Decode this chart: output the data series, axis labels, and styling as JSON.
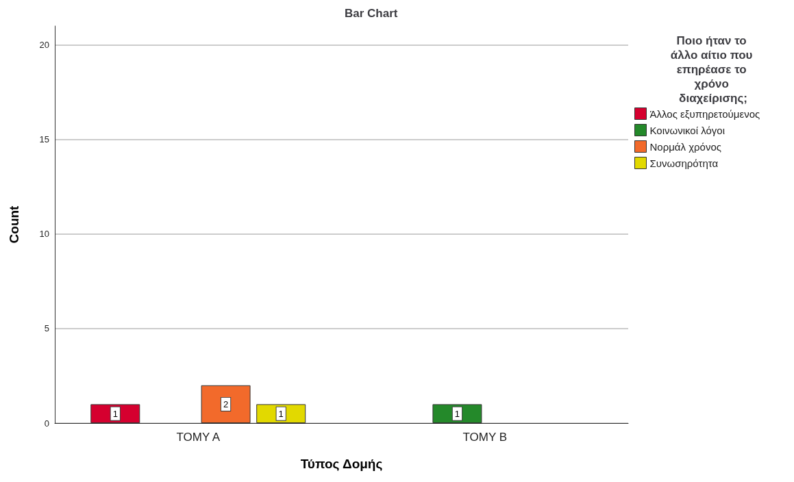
{
  "chart_data": {
    "type": "bar",
    "title": "Bar Chart",
    "xlabel": "Τύπος Δομής",
    "ylabel": "Count",
    "legend_title": "Ποιο ήταν το άλλο αίτιο που επηρέασε το χρόνο διαχείρισης;",
    "categories": [
      "ΤΟΜΥ Α",
      "ΤΟΜΥ Β"
    ],
    "series": [
      {
        "name": "Άλλος εξυπηρετούμενος",
        "color": "#d5002f",
        "values": [
          1,
          null
        ]
      },
      {
        "name": "Κοινωνικοί λόγοι",
        "color": "#24892a",
        "values": [
          null,
          1
        ]
      },
      {
        "name": "Νορμάλ χρόνος",
        "color": "#f26a2b",
        "values": [
          2,
          null
        ]
      },
      {
        "name": "Συνωσηρότητα",
        "color": "#e2d900",
        "values": [
          1,
          null
        ]
      }
    ],
    "ylim": [
      0,
      21
    ],
    "yticks": [
      0,
      5,
      10,
      15,
      20
    ],
    "grid": "y",
    "legend": "top right",
    "data_labels": true
  }
}
